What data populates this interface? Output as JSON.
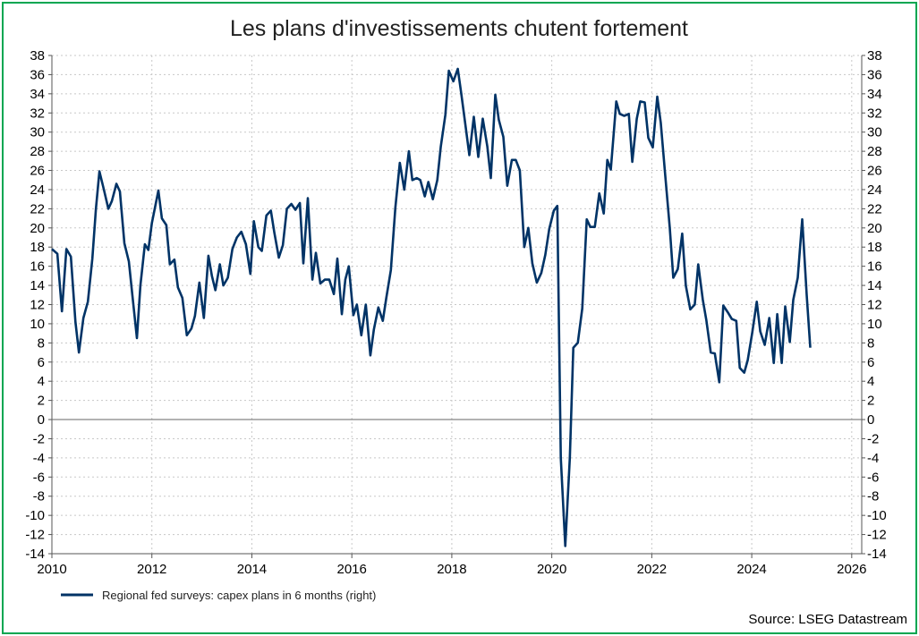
{
  "chart_data": {
    "type": "line",
    "title": "Les plans d'investissements chutent fortement",
    "source": "Source: LSEG Datastream",
    "xlim": [
      2010,
      2026.2
    ],
    "ylim": [
      -14,
      38
    ],
    "y_ticks": [
      -14,
      -12,
      -10,
      -8,
      -6,
      -4,
      -2,
      0,
      2,
      4,
      6,
      8,
      10,
      12,
      14,
      16,
      18,
      20,
      22,
      24,
      26,
      28,
      30,
      32,
      34,
      36,
      38
    ],
    "x_ticks": [
      2010,
      2012,
      2014,
      2016,
      2018,
      2020,
      2022,
      2024,
      2026
    ],
    "grid": true,
    "legend_position": "bottom-left",
    "colors": {
      "series": "#003366",
      "border": "#00a651",
      "grid": "#c8c8c8",
      "zero_line": "#666666"
    },
    "series": [
      {
        "name": "Regional fed surveys: capex plans in 6 months (right)",
        "x": [
          2010.0,
          2010.11,
          2010.2,
          2010.29,
          2010.38,
          2010.47,
          2010.54,
          2010.63,
          2010.72,
          2010.81,
          2010.88,
          2010.95,
          2011.04,
          2011.13,
          2011.2,
          2011.29,
          2011.36,
          2011.45,
          2011.54,
          2011.61,
          2011.7,
          2011.77,
          2011.86,
          2011.93,
          2012.0,
          2012.13,
          2012.2,
          2012.29,
          2012.36,
          2012.45,
          2012.52,
          2012.61,
          2012.7,
          2012.79,
          2012.86,
          2012.95,
          2013.04,
          2013.13,
          2013.2,
          2013.27,
          2013.36,
          2013.43,
          2013.52,
          2013.61,
          2013.7,
          2013.79,
          2013.88,
          2013.97,
          2014.04,
          2014.13,
          2014.2,
          2014.29,
          2014.38,
          2014.45,
          2014.54,
          2014.62,
          2014.7,
          2014.79,
          2014.87,
          2014.96,
          2015.03,
          2015.12,
          2015.21,
          2015.28,
          2015.37,
          2015.46,
          2015.55,
          2015.64,
          2015.71,
          2015.8,
          2015.87,
          2015.94,
          2016.03,
          2016.1,
          2016.19,
          2016.28,
          2016.37,
          2016.44,
          2016.53,
          2016.62,
          2016.69,
          2016.78,
          2016.87,
          2016.96,
          2017.05,
          2017.14,
          2017.21,
          2017.3,
          2017.37,
          2017.46,
          2017.53,
          2017.62,
          2017.71,
          2017.78,
          2017.87,
          2017.94,
          2018.03,
          2018.12,
          2018.19,
          2018.28,
          2018.35,
          2018.44,
          2018.53,
          2018.62,
          2018.71,
          2018.78,
          2018.87,
          2018.94,
          2019.03,
          2019.11,
          2019.2,
          2019.28,
          2019.36,
          2019.45,
          2019.53,
          2019.61,
          2019.7,
          2019.79,
          2019.87,
          2019.95,
          2020.04,
          2020.11,
          2020.18,
          2020.27,
          2020.36,
          2020.43,
          2020.52,
          2020.61,
          2020.7,
          2020.77,
          2020.86,
          2020.95,
          2021.04,
          2021.11,
          2021.18,
          2021.29,
          2021.36,
          2021.45,
          2021.54,
          2021.61,
          2021.7,
          2021.77,
          2021.86,
          2021.93,
          2022.02,
          2022.11,
          2022.18,
          2022.27,
          2022.36,
          2022.43,
          2022.52,
          2022.61,
          2022.68,
          2022.77,
          2022.86,
          2022.93,
          2023.02,
          2023.09,
          2023.18,
          2023.26,
          2023.35,
          2023.43,
          2023.52,
          2023.6,
          2023.69,
          2023.76,
          2023.85,
          2023.92,
          2024.01,
          2024.1,
          2024.17,
          2024.26,
          2024.35,
          2024.44,
          2024.51,
          2024.6,
          2024.67,
          2024.76,
          2024.83,
          2024.92,
          2025.01,
          2025.1,
          2025.17
        ],
        "values": [
          17.8,
          17.3,
          11.3,
          17.8,
          17.0,
          10.2,
          7.0,
          10.6,
          12.3,
          16.8,
          22.0,
          25.9,
          24.0,
          22.0,
          22.8,
          24.6,
          23.8,
          18.4,
          16.5,
          13.0,
          8.5,
          14.0,
          18.3,
          17.7,
          20.5,
          23.9,
          21.0,
          20.3,
          16.2,
          16.7,
          13.8,
          12.7,
          8.8,
          9.5,
          10.8,
          14.3,
          10.6,
          17.1,
          15.0,
          13.5,
          16.2,
          14.0,
          14.8,
          17.8,
          19.0,
          19.6,
          18.3,
          15.2,
          20.7,
          18.0,
          17.6,
          21.3,
          21.8,
          19.5,
          16.9,
          18.2,
          22.0,
          22.5,
          21.9,
          22.6,
          16.3,
          23.1,
          14.6,
          17.4,
          14.2,
          14.6,
          14.6,
          13.1,
          16.8,
          11.0,
          14.6,
          16.0,
          10.9,
          12.0,
          8.8,
          12.0,
          6.7,
          9.4,
          11.7,
          10.3,
          12.7,
          15.6,
          22.1,
          26.8,
          24.0,
          28.0,
          25.0,
          25.2,
          25.0,
          23.3,
          24.8,
          23.0,
          25.0,
          28.5,
          31.8,
          36.4,
          35.3,
          36.6,
          34.0,
          30.4,
          27.6,
          31.6,
          27.4,
          31.4,
          28.5,
          25.2,
          33.9,
          31.3,
          29.5,
          24.4,
          27.1,
          27.1,
          26.0,
          18.0,
          20.0,
          16.3,
          14.3,
          15.3,
          17.2,
          19.9,
          21.8,
          22.3,
          -4.0,
          -13.2,
          -4.0,
          7.5,
          8.0,
          11.6,
          20.9,
          20.1,
          20.1,
          23.6,
          21.5,
          27.1,
          26.1,
          33.2,
          31.9,
          31.7,
          31.9,
          26.9,
          31.4,
          33.2,
          33.1,
          29.4,
          28.4,
          33.7,
          31.0,
          25.4,
          20.0,
          14.8,
          15.7,
          19.4,
          14.0,
          11.5,
          12.0,
          16.2,
          12.5,
          10.4,
          7.0,
          6.9,
          3.9,
          11.9,
          11.2,
          10.5,
          10.3,
          5.4,
          4.9,
          6.2,
          9.1,
          12.3,
          9.2,
          7.8,
          10.6,
          5.9,
          11.0,
          5.9,
          11.8,
          8.1,
          12.5,
          14.8,
          20.9,
          13.0,
          7.5
        ]
      }
    ]
  }
}
